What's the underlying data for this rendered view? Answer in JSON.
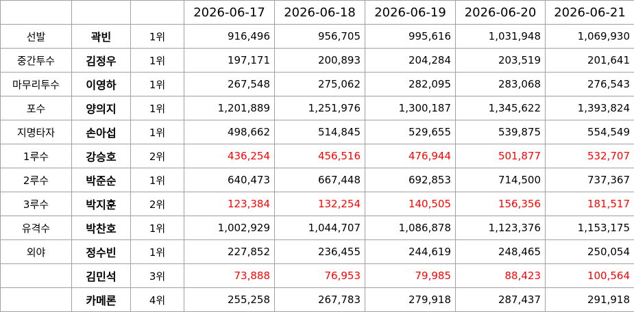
{
  "table": {
    "columns": [
      "2026-06-17",
      "2026-06-18",
      "2026-06-19",
      "2026-06-20",
      "2026-06-21"
    ],
    "rows": [
      {
        "position": "선발",
        "name": "곽빈",
        "rank": "1위",
        "values": [
          "916,496",
          "956,705",
          "995,616",
          "1,031,948",
          "1,069,930"
        ],
        "color": "#000000"
      },
      {
        "position": "중간투수",
        "name": "김정우",
        "rank": "1위",
        "values": [
          "197,171",
          "200,893",
          "204,284",
          "203,519",
          "201,641"
        ],
        "color": "#000000"
      },
      {
        "position": "마무리투수",
        "name": "이영하",
        "rank": "1위",
        "values": [
          "267,548",
          "275,062",
          "282,095",
          "283,068",
          "276,543"
        ],
        "color": "#000000"
      },
      {
        "position": "포수",
        "name": "양의지",
        "rank": "1위",
        "values": [
          "1,201,889",
          "1,251,976",
          "1,300,187",
          "1,345,622",
          "1,393,824"
        ],
        "color": "#000000"
      },
      {
        "position": "지명타자",
        "name": "손아섭",
        "rank": "1위",
        "values": [
          "498,662",
          "514,845",
          "529,655",
          "539,875",
          "554,549"
        ],
        "color": "#000000"
      },
      {
        "position": "1루수",
        "name": "강승호",
        "rank": "2위",
        "values": [
          "436,254",
          "456,516",
          "476,944",
          "501,877",
          "532,707"
        ],
        "color": "#ff0000"
      },
      {
        "position": "2루수",
        "name": "박준순",
        "rank": "1위",
        "values": [
          "640,473",
          "667,448",
          "692,853",
          "714,500",
          "737,367"
        ],
        "color": "#000000"
      },
      {
        "position": "3루수",
        "name": "박지훈",
        "rank": "2위",
        "values": [
          "123,384",
          "132,254",
          "140,505",
          "156,356",
          "181,517"
        ],
        "color": "#ff0000"
      },
      {
        "position": "유격수",
        "name": "박찬호",
        "rank": "1위",
        "values": [
          "1,002,929",
          "1,044,707",
          "1,086,878",
          "1,123,376",
          "1,153,175"
        ],
        "color": "#000000"
      },
      {
        "position": "외야",
        "name": "정수빈",
        "rank": "1위",
        "values": [
          "227,852",
          "236,455",
          "244,619",
          "248,465",
          "250,054"
        ],
        "color": "#000000"
      },
      {
        "position": null,
        "name": "김민석",
        "rank": "3위",
        "values": [
          "73,888",
          "76,953",
          "79,985",
          "88,423",
          "100,564"
        ],
        "color": "#ff0000"
      },
      {
        "position": null,
        "name": "카메론",
        "rank": "4위",
        "values": [
          "255,258",
          "267,783",
          "279,918",
          "287,437",
          "291,918"
        ],
        "color": "#000000"
      }
    ]
  }
}
